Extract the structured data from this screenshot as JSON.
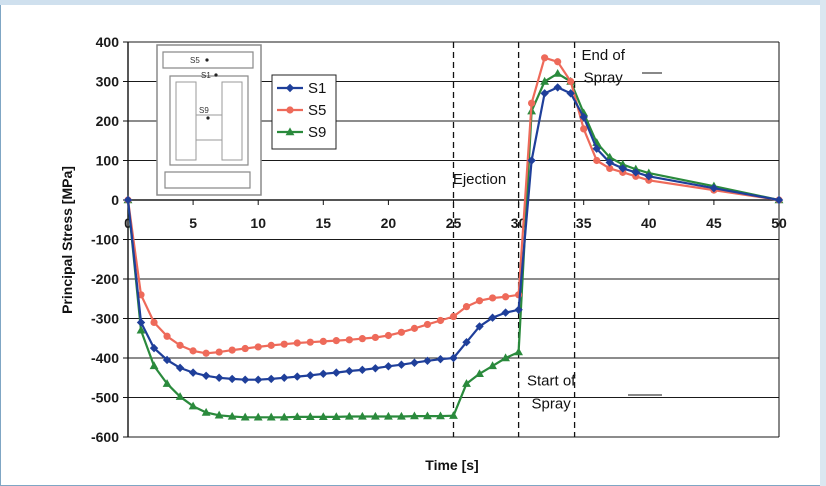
{
  "chart_data": {
    "type": "line",
    "xlabel": "Time [s]",
    "ylabel": "Principal Stress  [MPa]",
    "xlim": [
      0,
      50
    ],
    "ylim": [
      -600,
      400
    ],
    "xticks": [
      0,
      5,
      10,
      15,
      20,
      25,
      30,
      35,
      40,
      45,
      50
    ],
    "yticks": [
      -600,
      -500,
      -400,
      -300,
      -200,
      -100,
      0,
      100,
      200,
      300,
      400
    ],
    "grid": "horizontal",
    "legend_position": "top-left, inside plot",
    "annotations": [
      {
        "label": "Ejection",
        "x": 27,
        "y": 40
      },
      {
        "label": "End of",
        "x": 36.5,
        "y": 355
      },
      {
        "label": "Spray",
        "x": 36.5,
        "y": 298
      },
      {
        "label": "Start of",
        "x": 32.5,
        "y": -470
      },
      {
        "label": "Spray",
        "x": 32.5,
        "y": -528
      }
    ],
    "reference_lines": [
      {
        "style": "dashed",
        "x": 25
      },
      {
        "style": "dashed",
        "x": 30
      },
      {
        "style": "dashed",
        "x": 34.3
      }
    ],
    "inset_labels": [
      "S5",
      "S1",
      "S9"
    ],
    "series": [
      {
        "name": "S1",
        "color": "#1f3f9a",
        "marker": "diamond",
        "x": [
          0,
          1,
          2,
          3,
          4,
          5,
          6,
          7,
          8,
          9,
          10,
          11,
          12,
          13,
          14,
          15,
          16,
          17,
          18,
          19,
          20,
          21,
          22,
          23,
          24,
          25,
          26,
          27,
          28,
          29,
          30,
          31,
          32,
          33,
          34,
          35,
          36,
          37,
          38,
          39,
          40,
          45,
          50
        ],
        "y": [
          0,
          -310,
          -375,
          -405,
          -425,
          -437,
          -445,
          -450,
          -453,
          -455,
          -455,
          -453,
          -450,
          -447,
          -444,
          -440,
          -437,
          -433,
          -430,
          -426,
          -421,
          -417,
          -412,
          -407,
          -403,
          -400,
          -360,
          -320,
          -298,
          -285,
          -278,
          100,
          270,
          285,
          270,
          210,
          130,
          95,
          80,
          70,
          60,
          30,
          0
        ]
      },
      {
        "name": "S5",
        "color": "#ee6a5a",
        "marker": "circle",
        "x": [
          0,
          1,
          2,
          3,
          4,
          5,
          6,
          7,
          8,
          9,
          10,
          11,
          12,
          13,
          14,
          15,
          16,
          17,
          18,
          19,
          20,
          21,
          22,
          23,
          24,
          25,
          26,
          27,
          28,
          29,
          30,
          31,
          32,
          33,
          34,
          35,
          36,
          37,
          38,
          39,
          40,
          45,
          50
        ],
        "y": [
          0,
          -240,
          -310,
          -345,
          -368,
          -382,
          -388,
          -385,
          -380,
          -376,
          -372,
          -368,
          -365,
          -362,
          -360,
          -358,
          -356,
          -354,
          -351,
          -348,
          -343,
          -335,
          -325,
          -315,
          -305,
          -295,
          -270,
          -255,
          -248,
          -245,
          -240,
          245,
          360,
          350,
          300,
          180,
          100,
          80,
          70,
          60,
          50,
          25,
          0
        ]
      },
      {
        "name": "S9",
        "color": "#2a8a3c",
        "marker": "triangle",
        "x": [
          0,
          1,
          2,
          3,
          4,
          5,
          6,
          7,
          8,
          9,
          10,
          11,
          12,
          13,
          14,
          15,
          16,
          17,
          18,
          19,
          20,
          21,
          22,
          23,
          24,
          25,
          26,
          27,
          28,
          29,
          30,
          31,
          32,
          33,
          34,
          35,
          36,
          37,
          38,
          39,
          40,
          45,
          50
        ],
        "y": [
          0,
          -330,
          -420,
          -465,
          -498,
          -522,
          -538,
          -545,
          -548,
          -550,
          -550,
          -550,
          -550,
          -549,
          -549,
          -549,
          -549,
          -548,
          -548,
          -548,
          -548,
          -548,
          -547,
          -547,
          -547,
          -546,
          -465,
          -440,
          -420,
          -400,
          -385,
          225,
          300,
          320,
          300,
          220,
          145,
          108,
          90,
          78,
          68,
          35,
          0
        ]
      }
    ]
  }
}
